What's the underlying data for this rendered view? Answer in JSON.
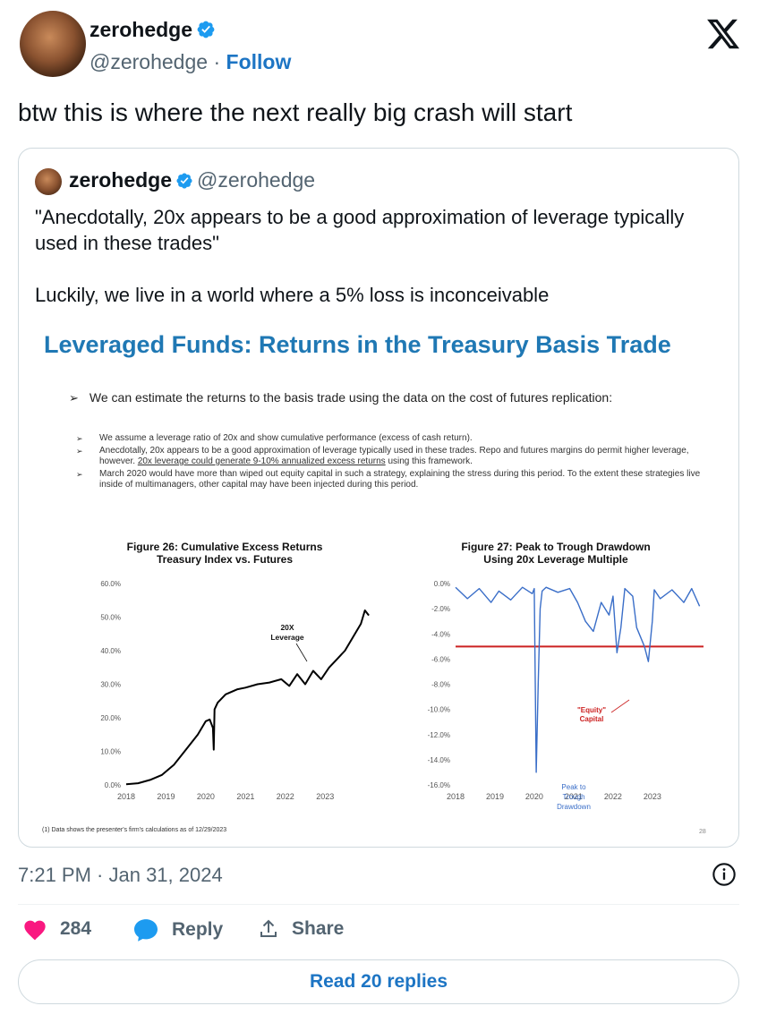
{
  "author": {
    "name": "zerohedge",
    "handle": "@zerohedge",
    "separator": "·",
    "follow_label": "Follow"
  },
  "tweet": {
    "text": "btw this is where the next really big crash will start",
    "timestamp": "7:21 PM · Jan 31, 2024"
  },
  "quoted": {
    "name": "zerohedge",
    "handle": "@zerohedge",
    "paragraph1": "\"Anecdotally, 20x appears to be a good approximation of leverage typically used in these trades\"",
    "paragraph2": "Luckily, we live in a world where a 5% loss is inconceivable"
  },
  "slide": {
    "title": "Leveraged Funds: Returns in the Treasury Basis Trade",
    "main_bullet": "We can estimate the returns to the basis trade using the data on the cost of futures replication:",
    "sub_bullets": [
      "We assume a leverage ratio of 20x and show cumulative performance (excess of cash return).",
      "Anecdotally, 20x appears to be a good approximation of leverage typically used in these trades. Repo and futures margins do permit higher leverage, however.",
      "20x leverage could generate 9-10% annualized excess returns",
      "using this framework.",
      "March 2020 would have more than wiped out equity capital in such a strategy, explaining the stress during this period. To the extent these strategies live inside of multimanagers, other capital may have been injected during this period."
    ],
    "footnote": "(1)   Data shows the presenter's firm's calculations as of 12/29/2023",
    "page_number": "28"
  },
  "chart_data": [
    {
      "type": "line",
      "title": "Figure 26: Cumulative Excess Returns",
      "subtitle": "Treasury Index vs. Futures",
      "annotation": "20X Leverage",
      "x_ticks": [
        "2018",
        "2019",
        "2020",
        "2021",
        "2022",
        "2023"
      ],
      "y_ticks": [
        "0.0%",
        "10.0%",
        "20.0%",
        "30.0%",
        "40.0%",
        "50.0%",
        "60.0%"
      ],
      "ylim": [
        0,
        60
      ],
      "xlim": [
        2018.0,
        2024.3
      ],
      "series": [
        {
          "color": "#000000",
          "x": [
            2018.0,
            2018.3,
            2018.6,
            2018.9,
            2019.2,
            2019.5,
            2019.8,
            2020.0,
            2020.1,
            2020.18,
            2020.2,
            2020.22,
            2020.3,
            2020.5,
            2020.8,
            2021.0,
            2021.3,
            2021.6,
            2021.9,
            2022.1,
            2022.3,
            2022.5,
            2022.7,
            2022.9,
            2023.1,
            2023.3,
            2023.5,
            2023.7,
            2023.9,
            2024.0,
            2024.1
          ],
          "y": [
            0.2,
            0.5,
            1.5,
            3.0,
            6.0,
            10.5,
            15.0,
            19.0,
            19.5,
            17.0,
            10.5,
            22.5,
            24.5,
            27.0,
            28.5,
            29.0,
            30.0,
            30.5,
            31.5,
            29.5,
            33.0,
            30.0,
            34.0,
            31.5,
            35.0,
            37.5,
            40.0,
            44.0,
            48.0,
            52.0,
            50.5
          ]
        }
      ]
    },
    {
      "type": "line",
      "title": "Figure 27: Peak to Trough Drawdown",
      "subtitle": "Using 20x Leverage Multiple",
      "annotations": [
        "\"Equity\" Capital",
        "Peak to Trough Drawdown"
      ],
      "x_ticks": [
        "2018",
        "2019",
        "2020",
        "2021",
        "2022",
        "2023"
      ],
      "y_ticks": [
        "0.0%",
        "-2.0%",
        "-4.0%",
        "-6.0%",
        "-8.0%",
        "-10.0%",
        "-12.0%",
        "-14.0%",
        "-16.0%"
      ],
      "ylim": [
        -16,
        0
      ],
      "xlim": [
        2018.0,
        2024.3
      ],
      "reference_line": {
        "y": -5.0,
        "color": "#cc2222"
      },
      "series": [
        {
          "color": "#3a6ec8",
          "x": [
            2018.0,
            2018.3,
            2018.6,
            2018.9,
            2019.1,
            2019.4,
            2019.7,
            2019.95,
            2020.0,
            2020.05,
            2020.1,
            2020.15,
            2020.2,
            2020.3,
            2020.6,
            2020.9,
            2021.1,
            2021.3,
            2021.5,
            2021.7,
            2021.9,
            2022.0,
            2022.1,
            2022.2,
            2022.3,
            2022.5,
            2022.6,
            2022.8,
            2022.9,
            2023.0,
            2023.05,
            2023.2,
            2023.5,
            2023.8,
            2024.0,
            2024.2
          ],
          "y": [
            -0.3,
            -1.2,
            -0.4,
            -1.5,
            -0.6,
            -1.3,
            -0.3,
            -0.8,
            -0.4,
            -15.0,
            -8.0,
            -2.0,
            -0.6,
            -0.3,
            -0.7,
            -0.4,
            -1.5,
            -3.0,
            -3.8,
            -1.5,
            -2.5,
            -1.0,
            -5.5,
            -3.5,
            -0.4,
            -1.0,
            -3.5,
            -5.0,
            -6.2,
            -3.0,
            -0.5,
            -1.2,
            -0.5,
            -1.5,
            -0.4,
            -1.8
          ]
        }
      ]
    }
  ],
  "engagement": {
    "likes": "284",
    "reply_label": "Reply",
    "share_label": "Share",
    "read_replies_label": "Read 20 replies"
  },
  "colors": {
    "brand_blue": "#1d75c4",
    "verified_blue": "#1d9bf0",
    "like_pink": "#f91880",
    "slide_title_blue": "#1f78b4"
  }
}
